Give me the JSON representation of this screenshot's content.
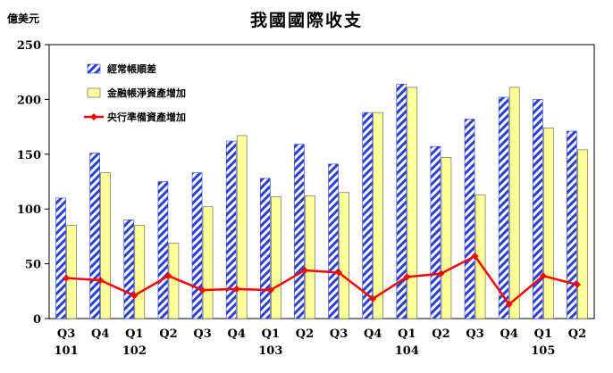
{
  "chart_data": {
    "type": "bar",
    "title": "我國國際收支",
    "unit_label": "億美元",
    "ylim": [
      0,
      250
    ],
    "yticks": [
      0,
      50,
      100,
      150,
      200,
      250
    ],
    "categories": [
      "Q3",
      "Q4",
      "Q1",
      "Q2",
      "Q3",
      "Q4",
      "Q1",
      "Q2",
      "Q3",
      "Q4",
      "Q1",
      "Q2",
      "Q3",
      "Q4",
      "Q1",
      "Q2"
    ],
    "year_labels": [
      {
        "index": 0,
        "label": "101"
      },
      {
        "index": 2,
        "label": "102"
      },
      {
        "index": 6,
        "label": "103"
      },
      {
        "index": 10,
        "label": "104"
      },
      {
        "index": 14,
        "label": "105"
      }
    ],
    "series": [
      {
        "name": "經常帳順差",
        "kind": "bar",
        "color": "#2a3fd6",
        "pattern": "diagonal-hatch",
        "values": [
          110,
          151,
          90,
          125,
          133,
          162,
          128,
          159,
          141,
          188,
          214,
          157,
          182,
          202,
          200,
          171
        ]
      },
      {
        "name": "金融帳淨資產增加",
        "kind": "bar",
        "color": "#ffff99",
        "values": [
          85,
          133,
          85,
          69,
          102,
          167,
          111,
          112,
          115,
          188,
          211,
          147,
          113,
          211,
          174,
          154
        ]
      },
      {
        "name": "央行準備資產增加",
        "kind": "line",
        "color": "#ff0000",
        "values": [
          37,
          35,
          21,
          39,
          26,
          27,
          26,
          44,
          42,
          18,
          38,
          41,
          57,
          13,
          39,
          31
        ]
      }
    ],
    "legend_position": "top-left",
    "grid": false
  }
}
